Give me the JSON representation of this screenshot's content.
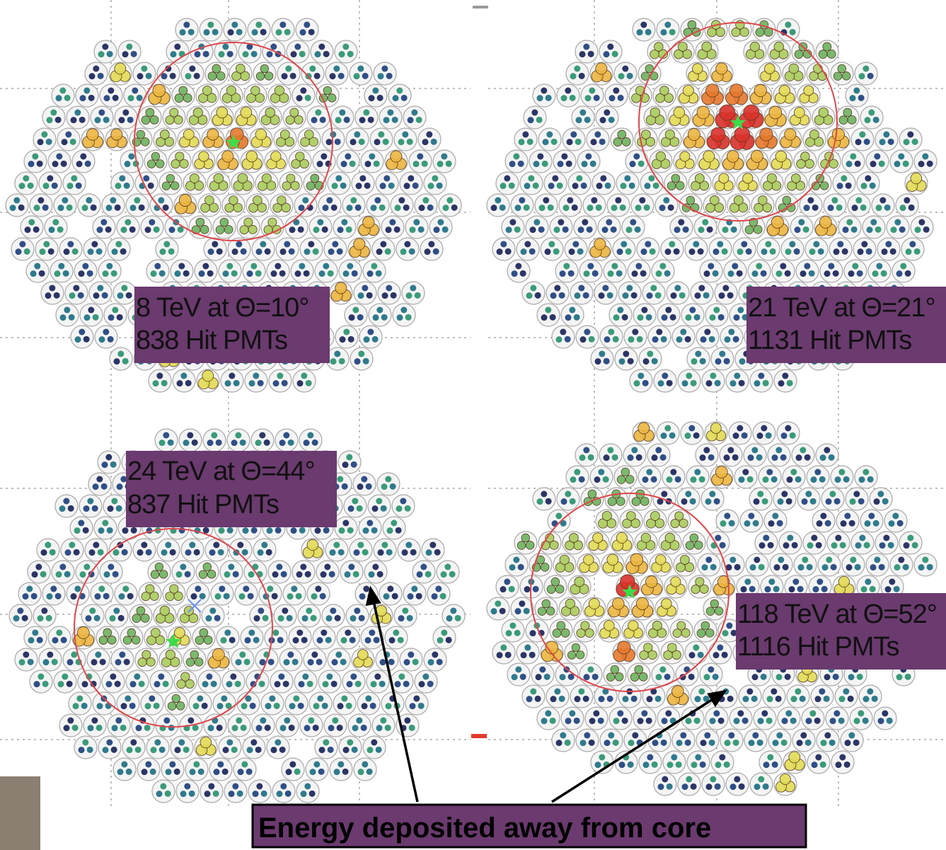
{
  "panels": [
    {
      "energy_label": "8 TeV at Θ=10°",
      "hits_label": "838 Hit PMTs"
    },
    {
      "energy_label": "21 TeV at Θ=21°",
      "hits_label": "1131 Hit PMTs"
    },
    {
      "energy_label": "24 TeV at Θ=44°",
      "hits_label": "837 Hit PMTs"
    },
    {
      "energy_label": "118 TeV at Θ=52°",
      "hits_label": "1116 Hit PMTs"
    }
  ],
  "caption": "Energy deposited away from core"
}
